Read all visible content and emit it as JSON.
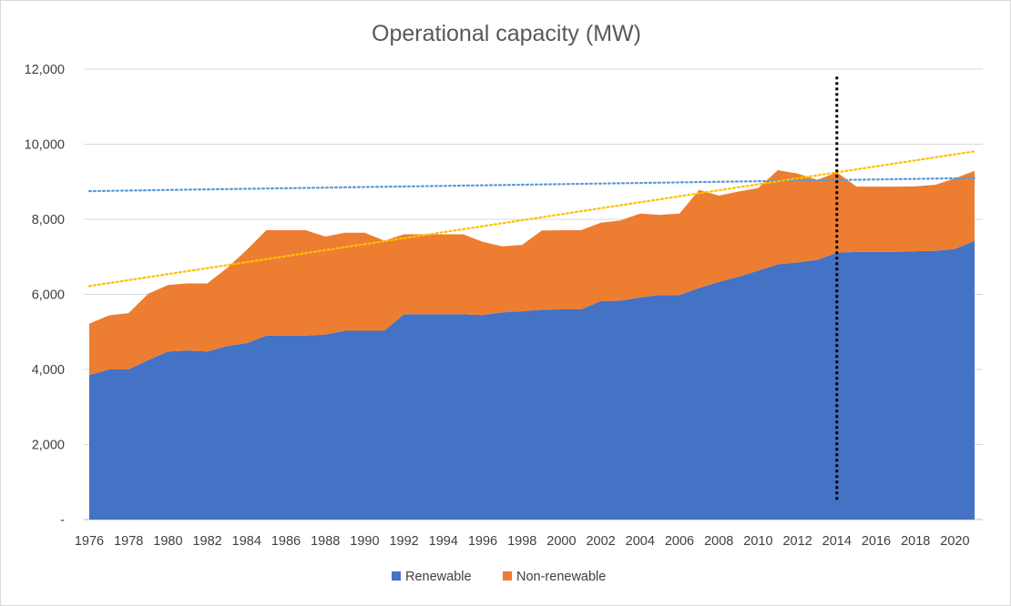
{
  "chart_data": {
    "type": "area",
    "title": "Operational capacity (MW)",
    "xlabel": "",
    "ylabel": "",
    "x": [
      1976,
      1977,
      1978,
      1979,
      1980,
      1981,
      1982,
      1983,
      1984,
      1985,
      1986,
      1987,
      1988,
      1989,
      1990,
      1991,
      1992,
      1993,
      1994,
      1995,
      1996,
      1997,
      1998,
      1999,
      2000,
      2001,
      2002,
      2003,
      2004,
      2005,
      2006,
      2007,
      2008,
      2009,
      2010,
      2011,
      2012,
      2013,
      2014,
      2015,
      2016,
      2017,
      2018,
      2019,
      2020,
      2021
    ],
    "x_tick_labels": [
      "1976",
      "1978",
      "1980",
      "1982",
      "1984",
      "1986",
      "1988",
      "1990",
      "1992",
      "1994",
      "1996",
      "1998",
      "2000",
      "2002",
      "2004",
      "2006",
      "2008",
      "2010",
      "2012",
      "2014",
      "2016",
      "2018",
      "2020"
    ],
    "ylim": [
      0,
      12000
    ],
    "y_ticks": [
      0,
      2000,
      4000,
      6000,
      8000,
      10000,
      12000
    ],
    "y_tick_labels": [
      "-",
      "2,000",
      "4,000",
      "6,000",
      "8,000",
      "10,000",
      "12,000"
    ],
    "stacked": true,
    "grid": "horizontal",
    "legend_position": "bottom",
    "series": [
      {
        "name": "Renewable",
        "color": "#4472c4",
        "values": [
          3850,
          4000,
          4000,
          4250,
          4480,
          4500,
          4480,
          4620,
          4700,
          4900,
          4900,
          4900,
          4930,
          5030,
          5030,
          5030,
          5470,
          5470,
          5470,
          5470,
          5450,
          5520,
          5550,
          5590,
          5600,
          5600,
          5820,
          5830,
          5920,
          5980,
          5980,
          6170,
          6330,
          6470,
          6630,
          6800,
          6850,
          6920,
          7110,
          7130,
          7130,
          7130,
          7150,
          7160,
          7210,
          7420
        ]
      },
      {
        "name": "Non-renewable",
        "color": "#ed7d31",
        "values": [
          1370,
          1440,
          1500,
          1770,
          1770,
          1790,
          1810,
          2080,
          2480,
          2810,
          2810,
          2810,
          2610,
          2610,
          2610,
          2400,
          2130,
          2130,
          2130,
          2130,
          1950,
          1760,
          1770,
          2110,
          2110,
          2110,
          2090,
          2140,
          2230,
          2140,
          2170,
          2610,
          2300,
          2270,
          2200,
          2510,
          2370,
          2130,
          2140,
          1740,
          1740,
          1740,
          1730,
          1760,
          1880,
          1870
        ]
      }
    ],
    "trendlines": [
      {
        "color": "#5b9bd5",
        "style": "dotted",
        "start": 8750,
        "end": 9100
      },
      {
        "color": "#ffc000",
        "style": "dotted",
        "start": 6220,
        "end": 9810
      }
    ],
    "marker_line": {
      "x": 2014,
      "y_range": [
        500,
        11800
      ],
      "color": "#000000",
      "style": "dotted"
    }
  }
}
